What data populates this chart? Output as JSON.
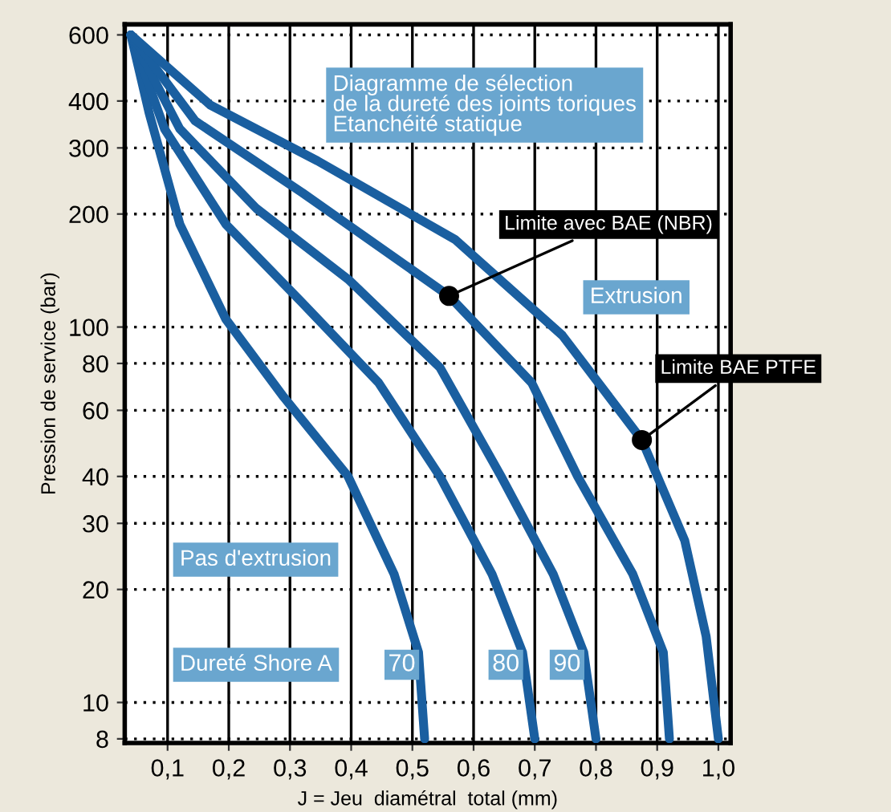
{
  "chart_data": {
    "type": "line",
    "xlabel": "J = Jeu  diamétral  total (mm)",
    "ylabel": "Pression de service (bar)",
    "log": "y",
    "xlim": [
      0.03,
      1.02
    ],
    "ylim": [
      7.8,
      640
    ],
    "xticks": [
      {
        "value": 0.1,
        "label": "0,1"
      },
      {
        "value": 0.2,
        "label": "0,2"
      },
      {
        "value": 0.3,
        "label": "0,3"
      },
      {
        "value": 0.4,
        "label": "0,4"
      },
      {
        "value": 0.5,
        "label": "0,5"
      },
      {
        "value": 0.6,
        "label": "0,6"
      },
      {
        "value": 0.7,
        "label": "0,7"
      },
      {
        "value": 0.8,
        "label": "0,8"
      },
      {
        "value": 0.9,
        "label": "0,9"
      },
      {
        "value": 1.0,
        "label": "1,0"
      }
    ],
    "yticks": [
      8,
      10,
      20,
      30,
      40,
      60,
      80,
      100,
      200,
      300,
      400,
      600
    ],
    "grid": true,
    "legend": false,
    "line_style": "solid",
    "marker": "none",
    "series": [
      {
        "name": "70",
        "color": "#1a5fa0",
        "x": [
          0.04,
          0.07,
          0.12,
          0.195,
          0.29,
          0.395,
          0.47,
          0.51,
          0.52
        ],
        "values": [
          600,
          371,
          188,
          105,
          65,
          40,
          22,
          13.6,
          8
        ]
      },
      {
        "name": "80",
        "color": "#1a5fa0",
        "x": [
          0.04,
          0.095,
          0.195,
          0.32,
          0.445,
          0.545,
          0.63,
          0.68,
          0.7
        ],
        "values": [
          600,
          337,
          188,
          116,
          71,
          40,
          22,
          13.6,
          8
        ]
      },
      {
        "name": "90",
        "color": "#1a5fa0",
        "x": [
          0.04,
          0.12,
          0.245,
          0.395,
          0.545,
          0.645,
          0.73,
          0.78,
          0.8
        ],
        "values": [
          600,
          337,
          207,
          134,
          78,
          40,
          22,
          13.6,
          8
        ]
      },
      {
        "name": "Limite avec BAE (NBR)",
        "color": "#1a5fa0",
        "x": [
          0.04,
          0.145,
          0.32,
          0.56,
          0.695,
          0.77,
          0.86,
          0.91,
          0.92
        ],
        "values": [
          600,
          354,
          228,
          121,
          71,
          40,
          22,
          13.6,
          8
        ]
      },
      {
        "name": "Limite BAE PTFE",
        "color": "#1a5fa0",
        "x": [
          0.04,
          0.17,
          0.345,
          0.57,
          0.745,
          0.875,
          0.945,
          0.98,
          1.0
        ],
        "values": [
          600,
          390,
          277,
          171,
          95,
          50,
          27,
          15,
          8
        ]
      }
    ],
    "annotations": [
      {
        "text": "Diagramme de sélection\nde la dureté des joints toriques\nEtanchéité statique"
      },
      {
        "text": "Extrusion"
      },
      {
        "text": "Pas d'extrusion"
      },
      {
        "text": "Dureté Shore A"
      }
    ]
  }
}
